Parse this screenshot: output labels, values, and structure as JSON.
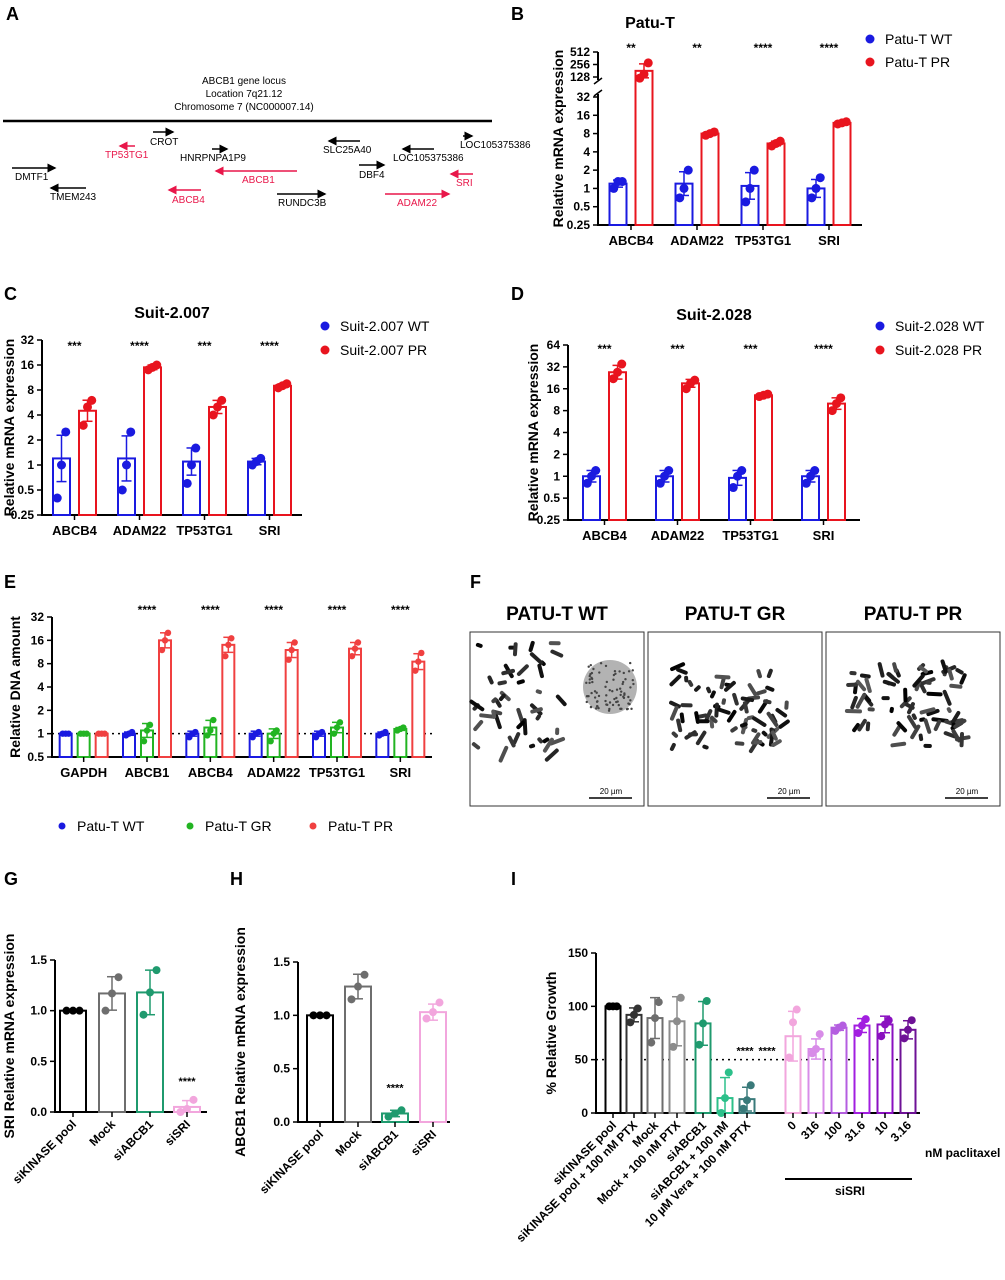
{
  "figure": {
    "panel_labels": [
      "A",
      "B",
      "C",
      "D",
      "E",
      "F",
      "G",
      "H",
      "I"
    ]
  },
  "panel_a": {
    "title_lines": [
      "ABCB1 gene locus",
      "Location 7q21.12",
      "Chromosome 7 (NC000007.14)"
    ],
    "genes": [
      {
        "name": "CROT",
        "color": "#000000",
        "direction": "right"
      },
      {
        "name": "TP53TG1",
        "color": "#e8174a",
        "direction": "left"
      },
      {
        "name": "HNRPNPA1P9",
        "color": "#000000",
        "direction": "right"
      },
      {
        "name": "DMTF1",
        "color": "#000000",
        "direction": "right"
      },
      {
        "name": "ABCB1",
        "color": "#e8174a",
        "direction": "left"
      },
      {
        "name": "TMEM243",
        "color": "#000000",
        "direction": "left"
      },
      {
        "name": "ABCB4",
        "color": "#e8174a",
        "direction": "left"
      },
      {
        "name": "RUNDC3B",
        "color": "#000000",
        "direction": "right"
      },
      {
        "name": "SLC25A40",
        "color": "#000000",
        "direction": "left"
      },
      {
        "name": "LOC105375386",
        "color": "#000000",
        "direction": "left"
      },
      {
        "name": "DBF4",
        "color": "#000000",
        "direction": "right"
      },
      {
        "name": "LOC105375386",
        "color": "#000000",
        "direction": "right"
      },
      {
        "name": "SRI",
        "color": "#e8174a",
        "direction": "left"
      },
      {
        "name": "ADAM22",
        "color": "#e8174a",
        "direction": "right"
      }
    ]
  },
  "panel_f": {
    "images": [
      {
        "title": "PATU-T WT",
        "scale_bar": "20 µm"
      },
      {
        "title": "PATU-T GR",
        "scale_bar": "20 µm"
      },
      {
        "title": "PATU-T PR",
        "scale_bar": "20 µm"
      }
    ]
  },
  "chart_data": [
    {
      "type": "bar",
      "title": "Patu-T",
      "ylabel": "Relative mRNA expression",
      "yscale": "log2",
      "ylim": [
        0.25,
        512
      ],
      "axis_break": [
        32,
        128
      ],
      "yticks": [
        "0.25",
        "0.5",
        "1",
        "2",
        "4",
        "8",
        "16",
        "32",
        "128",
        "256",
        "512"
      ],
      "categories": [
        "ABCB4",
        "ADAM22",
        "TP53TG1",
        "SRI"
      ],
      "legend": "right",
      "series": [
        {
          "name": "Patu-T WT",
          "color": "#1a1ae0",
          "values": [
            1.2,
            1.2,
            1.1,
            1.0
          ],
          "points": [
            [
              1.0,
              1.3,
              1.3
            ],
            [
              0.7,
              1.0,
              2.0
            ],
            [
              0.6,
              1.0,
              2.0
            ],
            [
              0.7,
              1.0,
              1.5
            ]
          ]
        },
        {
          "name": "Patu-T PR",
          "color": "#e8141e",
          "values": [
            180,
            8,
            5.5,
            12
          ],
          "points": [
            [
              120,
              150,
              280
            ],
            [
              7.5,
              8,
              8.5
            ],
            [
              5,
              5.5,
              6
            ],
            [
              11.5,
              12,
              12.5
            ]
          ]
        }
      ],
      "significance": [
        "**",
        "**",
        "****",
        "****"
      ]
    },
    {
      "type": "bar",
      "title": "Suit-2.007",
      "ylabel": "Relative mRNA expression",
      "yscale": "log2",
      "ylim": [
        0.25,
        32
      ],
      "yticks": [
        "0.25",
        "0.5",
        "1",
        "2",
        "4",
        "8",
        "16",
        "32"
      ],
      "categories": [
        "ABCB4",
        "ADAM22",
        "TP53TG1",
        "SRI"
      ],
      "legend": "right",
      "series": [
        {
          "name": "Suit-2.007 WT",
          "color": "#1a1ae0",
          "values": [
            1.2,
            1.2,
            1.1,
            1.1
          ],
          "points": [
            [
              0.4,
              1.0,
              2.5
            ],
            [
              0.5,
              1.0,
              2.5
            ],
            [
              0.6,
              1.0,
              1.6
            ],
            [
              1.0,
              1.1,
              1.2
            ]
          ]
        },
        {
          "name": "Suit-2.007 PR",
          "color": "#e8141e",
          "values": [
            4.5,
            15,
            5,
            9
          ],
          "points": [
            [
              3,
              5,
              6
            ],
            [
              14,
              15,
              16
            ],
            [
              4,
              5,
              6
            ],
            [
              8.5,
              9,
              9.5
            ]
          ]
        }
      ],
      "significance": [
        "***",
        "****",
        "***",
        "****"
      ]
    },
    {
      "type": "bar",
      "title": "Suit-2.028",
      "ylabel": "Relative mRNA expression",
      "yscale": "log2",
      "ylim": [
        0.25,
        64
      ],
      "yticks": [
        "0.25",
        "0.5",
        "1",
        "2",
        "4",
        "8",
        "16",
        "32",
        "64"
      ],
      "categories": [
        "ABCB4",
        "ADAM22",
        "TP53TG1",
        "SRI"
      ],
      "legend": "right",
      "series": [
        {
          "name": "Suit-2.028 WT",
          "color": "#1a1ae0",
          "values": [
            1.0,
            1.0,
            0.95,
            1.0
          ],
          "points": [
            [
              0.8,
              1.0,
              1.2
            ],
            [
              0.8,
              1.0,
              1.2
            ],
            [
              0.7,
              1.0,
              1.2
            ],
            [
              0.8,
              1.0,
              1.2
            ]
          ]
        },
        {
          "name": "Suit-2.028 PR",
          "color": "#e8141e",
          "values": [
            27,
            19,
            13,
            10
          ],
          "points": [
            [
              22,
              27,
              35
            ],
            [
              16,
              19,
              21
            ],
            [
              12.5,
              13,
              13.5
            ],
            [
              8,
              10,
              12
            ]
          ]
        }
      ],
      "significance": [
        "***",
        "***",
        "***",
        "****"
      ]
    },
    {
      "type": "bar",
      "title": "",
      "ylabel": "Relative DNA amount",
      "yscale": "log2",
      "ylim": [
        0.5,
        32
      ],
      "reference_line": 1,
      "yticks": [
        "0.5",
        "1",
        "2",
        "4",
        "8",
        "16",
        "32"
      ],
      "categories": [
        "GAPDH",
        "ABCB1",
        "ABCB4",
        "ADAM22",
        "TP53TG1",
        "SRI"
      ],
      "legend": "bottom",
      "series": [
        {
          "name": "Patu-T WT",
          "color": "#1a1ae0",
          "values": [
            1,
            1,
            1,
            1,
            1,
            1
          ],
          "points": [
            [
              1,
              1,
              1
            ],
            [
              0.95,
              1,
              1.05
            ],
            [
              0.9,
              1,
              1.05
            ],
            [
              0.9,
              1,
              1.05
            ],
            [
              0.9,
              1,
              1.05
            ],
            [
              0.95,
              1,
              1.05
            ]
          ]
        },
        {
          "name": "Patu-T GR",
          "color": "#22b422",
          "values": [
            1,
            1.1,
            1.2,
            1,
            1.2,
            1.15
          ],
          "points": [
            [
              1,
              1,
              1
            ],
            [
              0.8,
              1.1,
              1.3
            ],
            [
              0.95,
              1.1,
              1.5
            ],
            [
              0.8,
              1,
              1.1
            ],
            [
              1.0,
              1.2,
              1.4
            ],
            [
              1.1,
              1.15,
              1.2
            ]
          ]
        },
        {
          "name": "Patu-T PR",
          "color": "#f04040",
          "values": [
            1,
            16,
            14,
            12,
            12.5,
            8.5
          ],
          "points": [
            [
              1,
              1,
              1
            ],
            [
              12,
              16,
              20
            ],
            [
              10,
              14,
              17
            ],
            [
              9,
              12,
              15
            ],
            [
              10,
              12.5,
              15
            ],
            [
              6.5,
              8.5,
              11
            ]
          ]
        }
      ],
      "significance": [
        "",
        "****",
        "****",
        "****",
        "****",
        "****"
      ]
    },
    {
      "type": "bar",
      "title": "",
      "ylabel": "SRI Relative mRNA expression",
      "yscale": "linear",
      "ylim": [
        0,
        1.5
      ],
      "yticks": [
        "0.0",
        "0.5",
        "1.0",
        "1.5"
      ],
      "categories": [
        "siKINASE pool",
        "Mock",
        "siABCB1",
        "siSRI"
      ],
      "colors": [
        "#000000",
        "#6e6e6e",
        "#1f9a6e",
        "#f2a6dd"
      ],
      "values": [
        1.0,
        1.17,
        1.18,
        0.05
      ],
      "points": [
        [
          1.0,
          1.0,
          1.0
        ],
        [
          1.0,
          1.17,
          1.33
        ],
        [
          0.96,
          1.18,
          1.4
        ],
        [
          0.0,
          0.03,
          0.12
        ]
      ],
      "significance": [
        "",
        "",
        "",
        "****"
      ]
    },
    {
      "type": "bar",
      "title": "",
      "ylabel": "ABCB1 Relative mRNA expression",
      "yscale": "linear",
      "ylim": [
        0,
        1.5
      ],
      "yticks": [
        "0.0",
        "0.5",
        "1.0",
        "1.5"
      ],
      "categories": [
        "siKINASE pool",
        "Mock",
        "siABCB1",
        "siSRI"
      ],
      "colors": [
        "#000000",
        "#6e6e6e",
        "#1f9a6e",
        "#f2a6dd"
      ],
      "values": [
        1.0,
        1.27,
        0.08,
        1.03
      ],
      "points": [
        [
          1.0,
          1.0,
          1.0
        ],
        [
          1.15,
          1.27,
          1.38
        ],
        [
          0.05,
          0.08,
          0.11
        ],
        [
          0.97,
          1.03,
          1.12
        ]
      ],
      "significance": [
        "",
        "",
        "****",
        ""
      ]
    },
    {
      "type": "bar",
      "title": "",
      "ylabel": "% Relative Growth",
      "yscale": "linear",
      "ylim": [
        0,
        150
      ],
      "reference_line": 50,
      "yticks": [
        "0",
        "50",
        "100",
        "150"
      ],
      "categories": [
        "siKINASE pool",
        "siKINASE pool + 100 nM PTX",
        "Mock",
        "Mock + 100 nM PTX",
        "siABCB1",
        "siABCB1 + 100 nM",
        "10 µM Vera + 100 nM PTX",
        "0",
        "316",
        "100",
        "31.6",
        "10",
        "3.16"
      ],
      "colors": [
        "#000000",
        "#333333",
        "#6e6e6e",
        "#8c8c8c",
        "#1f9a6e",
        "#2cc08a",
        "#3a7a7a",
        "#f2a6dd",
        "#d88ce8",
        "#b45ee0",
        "#a21ee0",
        "#8a10c0",
        "#6e1296"
      ],
      "values": [
        100,
        92,
        89,
        86,
        84,
        14,
        13,
        72,
        60,
        80,
        82,
        83,
        78
      ],
      "points": [
        [
          100,
          100,
          100
        ],
        [
          85,
          92,
          98
        ],
        [
          66,
          89,
          104
        ],
        [
          62,
          86,
          108
        ],
        [
          64,
          84,
          105
        ],
        [
          0,
          14,
          38
        ],
        [
          4,
          12,
          26
        ],
        [
          52,
          85,
          97
        ],
        [
          56,
          60,
          74
        ],
        [
          77,
          80,
          82
        ],
        [
          75,
          82,
          88
        ],
        [
          72,
          83,
          87
        ],
        [
          70,
          78,
          87
        ]
      ],
      "significance": [
        "",
        "",
        "",
        "",
        "",
        "****",
        "****",
        "",
        "",
        "",
        "",
        "",
        ""
      ],
      "group_label": "siSRI",
      "axis_note": "nM paclitaxel"
    }
  ]
}
